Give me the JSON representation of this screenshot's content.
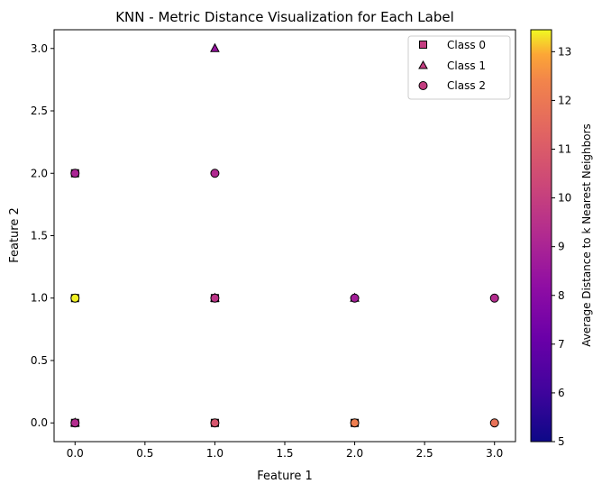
{
  "chart_data": {
    "type": "scatter",
    "title": "KNN - Metric Distance Visualization for Each Label",
    "xlabel": "Feature 1",
    "ylabel": "Feature 2",
    "xlim": [
      -0.15,
      3.15
    ],
    "ylim": [
      -0.15,
      3.15
    ],
    "xticks": [
      "0.0",
      "0.5",
      "1.0",
      "1.5",
      "2.0",
      "2.5",
      "3.0"
    ],
    "yticks": [
      "0.0",
      "0.5",
      "1.0",
      "1.5",
      "2.0",
      "2.5",
      "3.0"
    ],
    "grid": false,
    "legend_position": "top-right",
    "colormap": "plasma",
    "colorbar": {
      "label": "Average Distance to k Nearest Neighbors",
      "range": [
        5.0,
        13.45
      ],
      "ticks": [
        "5",
        "6",
        "7",
        "8",
        "9",
        "10",
        "11",
        "12",
        "13"
      ]
    },
    "series": [
      {
        "name": "Class 0",
        "marker": "square",
        "points": [
          {
            "x": 0,
            "y": 2,
            "c": 9.2
          },
          {
            "x": 0,
            "y": 1,
            "c": 12.5
          },
          {
            "x": 0,
            "y": 0,
            "c": 9.5
          },
          {
            "x": 1,
            "y": 1,
            "c": 9.3
          },
          {
            "x": 1,
            "y": 0,
            "c": 11.0
          },
          {
            "x": 2,
            "y": 0,
            "c": 12.0
          }
        ]
      },
      {
        "name": "Class 1",
        "marker": "triangle",
        "points": [
          {
            "x": 1,
            "y": 3,
            "c": 8.4
          },
          {
            "x": 0,
            "y": 0,
            "c": 9.0
          },
          {
            "x": 1,
            "y": 1,
            "c": 9.4
          },
          {
            "x": 2,
            "y": 1,
            "c": 8.7
          }
        ]
      },
      {
        "name": "Class 2",
        "marker": "circle",
        "points": [
          {
            "x": 0,
            "y": 2,
            "c": 9.0
          },
          {
            "x": 0,
            "y": 1,
            "c": 13.4
          },
          {
            "x": 0,
            "y": 0,
            "c": 9.3
          },
          {
            "x": 1,
            "y": 2,
            "c": 9.2
          },
          {
            "x": 1,
            "y": 1,
            "c": 9.6
          },
          {
            "x": 1,
            "y": 0,
            "c": 10.8
          },
          {
            "x": 2,
            "y": 1,
            "c": 8.8
          },
          {
            "x": 2,
            "y": 0,
            "c": 12.2
          },
          {
            "x": 3,
            "y": 1,
            "c": 9.3
          },
          {
            "x": 3,
            "y": 0,
            "c": 11.8
          }
        ]
      }
    ]
  }
}
